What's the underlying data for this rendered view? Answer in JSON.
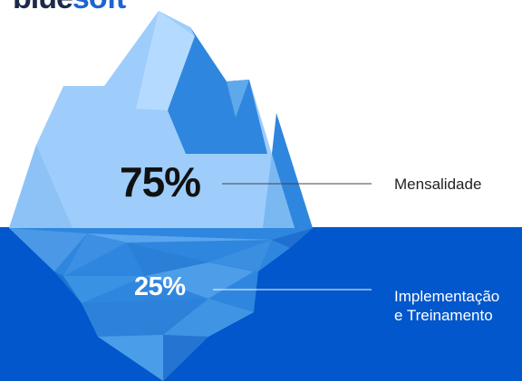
{
  "logo": {
    "part1": "blue",
    "part2": "soft"
  },
  "segments": [
    {
      "percent": "75%",
      "label": "Mensalidade",
      "value": 75
    },
    {
      "percent": "25%",
      "label_line1": "Implementação",
      "label_line2": "e Treinamento",
      "value": 25
    }
  ],
  "colors": {
    "water": "#0257cc",
    "ice_light": "#9ecdfb",
    "ice_mid": "#5ea8ec",
    "ice_dark": "#2f86de",
    "leader_line_top": "#444444",
    "leader_line_bottom": "#ffffff",
    "text_dark": "#111111",
    "text_light": "#ffffff"
  }
}
